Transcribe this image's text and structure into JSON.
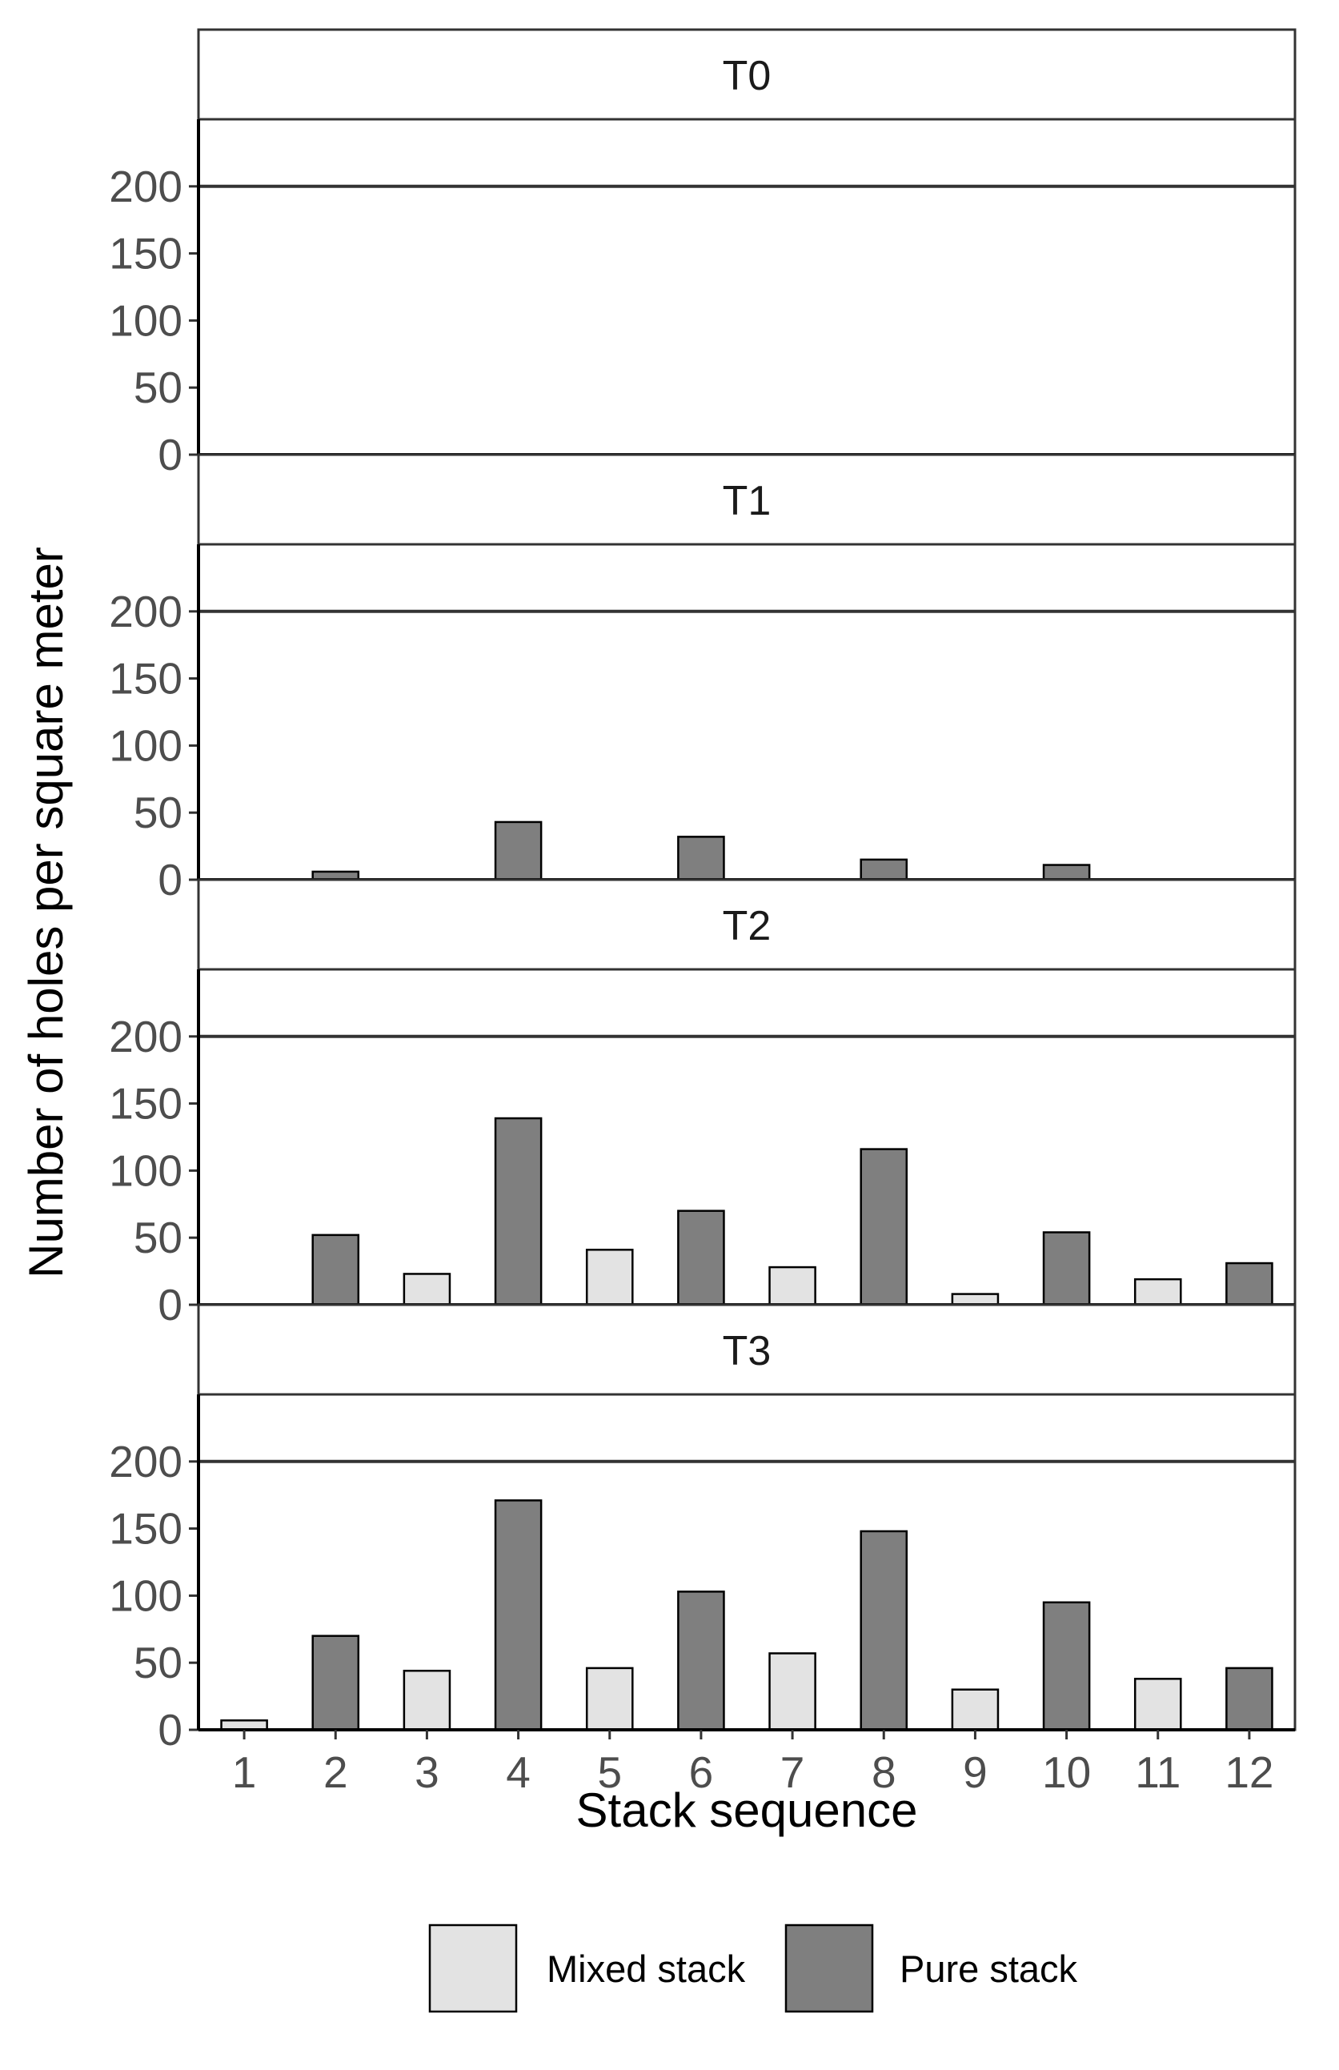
{
  "chart_data": {
    "type": "bar",
    "xlabel": "Stack sequence",
    "ylabel": "Number of holes per square meter",
    "categories": [
      "1",
      "2",
      "3",
      "4",
      "5",
      "6",
      "7",
      "8",
      "9",
      "10",
      "11",
      "12"
    ],
    "yticks": [
      "0",
      "50",
      "100",
      "150",
      "200"
    ],
    "ylim": [
      0,
      250
    ],
    "reference_line": 200,
    "colors": {
      "Mixed stack": "#e3e3e3",
      "Pure stack": "#7f7f7f"
    },
    "legend": {
      "position": "bottom",
      "items": [
        "Mixed stack",
        "Pure stack"
      ]
    },
    "stack_type": [
      "Mixed stack",
      "Pure stack",
      "Mixed stack",
      "Pure stack",
      "Mixed stack",
      "Pure stack",
      "Mixed stack",
      "Pure stack",
      "Mixed stack",
      "Pure stack",
      "Mixed stack",
      "Pure stack"
    ],
    "panels": [
      {
        "title": "T0",
        "values": [
          0,
          0,
          0,
          0,
          0,
          0,
          0,
          0,
          0,
          0,
          0,
          0
        ]
      },
      {
        "title": "T1",
        "values": [
          0,
          6,
          0,
          43,
          0,
          32,
          0,
          15,
          0,
          11,
          0,
          0
        ]
      },
      {
        "title": "T2",
        "values": [
          0,
          52,
          23,
          139,
          41,
          70,
          28,
          116,
          8,
          54,
          19,
          31
        ]
      },
      {
        "title": "T3",
        "values": [
          7,
          70,
          44,
          171,
          46,
          103,
          57,
          148,
          30,
          95,
          38,
          46
        ]
      }
    ]
  }
}
